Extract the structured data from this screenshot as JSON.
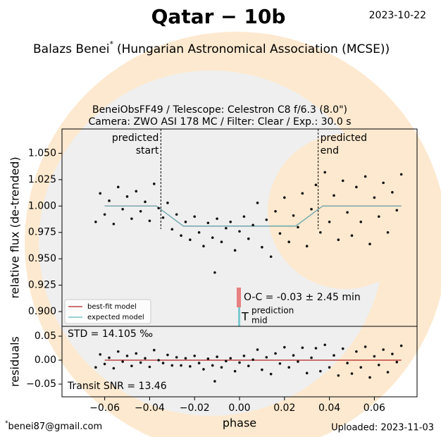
{
  "header": {
    "title": "Qatar − 10b",
    "date": "2023-10-22",
    "author": "Balazs Benei",
    "author_mark": "*",
    "affiliation": "(Hungarian Astronomical Association (MCSE))"
  },
  "footer": {
    "email_mark": "*",
    "email": "benei87@gmail.com",
    "uploaded": "Uploaded: 2023-11-03"
  },
  "chart_data": [
    {
      "type": "scatter",
      "subtitle": [
        "BeneiObsFF49 / Telescope: Celestron C8 f/6.3 (8.0\")",
        "Camera: ZWO ASI 178 MC / Filter: Clear / Exp.: 30.0 s"
      ],
      "y_label": "relative flux (de-trended)",
      "color": "#111111",
      "x": [
        -0.064,
        -0.062,
        -0.06,
        -0.058,
        -0.056,
        -0.054,
        -0.052,
        -0.05,
        -0.048,
        -0.046,
        -0.044,
        -0.042,
        -0.04,
        -0.038,
        -0.036,
        -0.034,
        -0.032,
        -0.03,
        -0.028,
        -0.026,
        -0.024,
        -0.022,
        -0.02,
        -0.018,
        -0.016,
        -0.014,
        -0.012,
        -0.01,
        -0.008,
        -0.006,
        -0.004,
        -0.002,
        0.0,
        0.002,
        0.004,
        0.006,
        0.008,
        0.01,
        0.012,
        0.014,
        0.016,
        0.018,
        0.02,
        0.022,
        0.024,
        0.026,
        0.028,
        0.03,
        0.032,
        0.034,
        0.036,
        0.038,
        0.04,
        0.042,
        0.044,
        0.046,
        0.048,
        0.05,
        0.052,
        0.054,
        0.056,
        0.058,
        0.06,
        0.062,
        0.064,
        0.066,
        0.068,
        0.07,
        0.072,
        -0.011
      ],
      "values": [
        0.985,
        1.012,
        0.992,
        1.005,
        0.983,
        1.018,
        0.997,
        1.009,
        0.988,
        1.014,
        0.995,
        1.004,
        0.986,
        1.021,
        0.998,
        0.989,
        1.003,
        0.978,
        0.992,
        0.972,
        0.985,
        0.968,
        0.99,
        0.975,
        0.962,
        0.984,
        0.97,
        0.988,
        0.966,
        0.979,
        0.985,
        0.958,
        0.976,
        0.99,
        0.969,
        0.982,
        1.003,
        0.961,
        0.987,
        0.952,
        0.995,
        0.974,
        1.008,
        0.966,
        0.991,
        0.98,
        1.012,
        0.962,
        0.997,
        1.02,
        0.975,
        1.032,
        0.985,
        1.01,
        0.968,
        1.024,
        0.994,
        0.972,
        1.018,
        0.985,
        1.028,
        0.964,
        1.008,
        0.99,
        1.022,
        0.975,
        1.013,
        0.996,
        1.03,
        0.937
      ],
      "models": [
        {
          "name": "best-fit model",
          "color": "#b22222",
          "x": [
            -0.06,
            -0.037,
            -0.025,
            0.025,
            0.037,
            0.072
          ],
          "values": [
            1.0,
            1.0,
            0.981,
            0.981,
            1.0,
            1.0
          ]
        },
        {
          "name": "expected model",
          "color": "#5fb7bd",
          "x": [
            -0.06,
            -0.037,
            -0.025,
            0.025,
            0.037,
            0.072
          ],
          "values": [
            1.0,
            1.0,
            0.981,
            0.981,
            1.0,
            1.0
          ]
        }
      ],
      "predicted_start": {
        "x": -0.035,
        "label": [
          "predicted",
          "start"
        ]
      },
      "predicted_end": {
        "x": 0.035,
        "label": [
          "predicted",
          "end"
        ]
      },
      "oc_label": "O-C = -0.03 ± 2.45 min",
      "prediction_mid": {
        "x": 0.0,
        "label": [
          "prediction",
          "mid"
        ]
      },
      "xlim": [
        -0.079,
        0.079
      ],
      "ylim": [
        0.886,
        1.073
      ],
      "yticks": [
        {
          "value": 0.9,
          "label": "0.900"
        },
        {
          "value": 0.925,
          "label": "0.925"
        },
        {
          "value": 0.95,
          "label": "0.950"
        },
        {
          "value": 0.975,
          "label": "0.975"
        },
        {
          "value": 1.0,
          "label": "1.000"
        },
        {
          "value": 1.025,
          "label": "1.025"
        },
        {
          "value": 1.05,
          "label": "1.050"
        }
      ]
    },
    {
      "type": "scatter",
      "y_label": "residuals",
      "x_label": "phase",
      "std_label": "STD = 14.105 ‰",
      "snr_label": "Transit SNR = 13.46",
      "color": "#111111",
      "x": [
        -0.064,
        -0.062,
        -0.06,
        -0.058,
        -0.056,
        -0.054,
        -0.052,
        -0.05,
        -0.048,
        -0.046,
        -0.044,
        -0.042,
        -0.04,
        -0.038,
        -0.036,
        -0.034,
        -0.032,
        -0.03,
        -0.028,
        -0.026,
        -0.024,
        -0.022,
        -0.02,
        -0.018,
        -0.016,
        -0.014,
        -0.012,
        -0.01,
        -0.008,
        -0.006,
        -0.004,
        -0.002,
        0.0,
        0.002,
        0.004,
        0.006,
        0.008,
        0.01,
        0.012,
        0.014,
        0.016,
        0.018,
        0.02,
        0.022,
        0.024,
        0.026,
        0.028,
        0.03,
        0.032,
        0.034,
        0.036,
        0.038,
        0.04,
        0.042,
        0.044,
        0.046,
        0.048,
        0.05,
        0.052,
        0.054,
        0.056,
        0.058,
        0.06,
        0.062,
        0.064,
        0.066,
        0.068,
        0.07,
        0.072,
        -0.011
      ],
      "values": [
        -0.015,
        0.012,
        -0.008,
        0.005,
        -0.017,
        0.018,
        -0.003,
        0.009,
        -0.012,
        0.014,
        -0.005,
        0.004,
        -0.014,
        0.021,
        0.0,
        -0.006,
        0.011,
        -0.011,
        0.006,
        -0.011,
        0.004,
        -0.013,
        0.009,
        -0.006,
        -0.019,
        0.003,
        -0.011,
        0.007,
        -0.015,
        -0.002,
        0.004,
        -0.023,
        -0.005,
        0.009,
        -0.012,
        0.001,
        0.022,
        -0.02,
        0.006,
        -0.029,
        0.014,
        -0.007,
        0.027,
        -0.015,
        0.01,
        -0.003,
        0.026,
        -0.027,
        0.005,
        0.025,
        -0.023,
        0.032,
        -0.015,
        0.01,
        -0.032,
        0.024,
        -0.006,
        -0.028,
        0.018,
        -0.015,
        0.028,
        -0.036,
        0.008,
        -0.01,
        0.022,
        -0.025,
        0.013,
        -0.004,
        0.03,
        -0.044
      ],
      "models": [
        {
          "name": "best-fit model",
          "color": "#b22222",
          "x": [
            -0.06,
            0.072
          ],
          "values": [
            0.0,
            0.0
          ]
        }
      ],
      "xlim": [
        -0.079,
        0.079
      ],
      "ylim": [
        -0.0765,
        0.0706
      ],
      "xticks": [
        {
          "value": -0.06,
          "label": "−0.06"
        },
        {
          "value": -0.04,
          "label": "−0.04"
        },
        {
          "value": -0.02,
          "label": "−0.02"
        },
        {
          "value": 0.0,
          "label": "0.00"
        },
        {
          "value": 0.02,
          "label": "0.02"
        },
        {
          "value": 0.04,
          "label": "0.04"
        },
        {
          "value": 0.06,
          "label": "0.06"
        }
      ],
      "yticks": [
        {
          "value": -0.05,
          "label": "−0.05"
        },
        {
          "value": 0.0,
          "label": "0.00"
        },
        {
          "value": 0.05,
          "label": "0.05"
        }
      ]
    }
  ]
}
